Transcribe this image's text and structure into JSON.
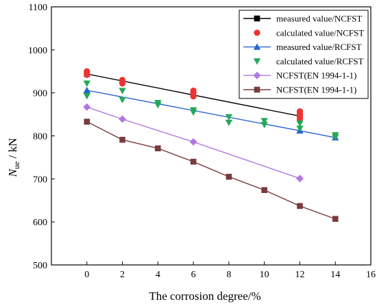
{
  "chart_data": {
    "type": "scatter",
    "title": "",
    "xlabel": "The corrosion degree/%",
    "ylabel_main": "N",
    "ylabel_sub": "ue",
    "ylabel_rest": " / kN",
    "xlim": [
      -2,
      16
    ],
    "ylim": [
      500,
      1100
    ],
    "xticks": [
      0,
      2,
      4,
      6,
      8,
      10,
      12,
      14,
      16
    ],
    "yticks": [
      500,
      600,
      700,
      800,
      900,
      1000,
      1100
    ],
    "grid": false,
    "legend_position": "top-right",
    "series": [
      {
        "name": "measured value/NCFST",
        "color": "#000000",
        "marker": "square",
        "line": true,
        "x": [
          0,
          12
        ],
        "y": [
          944,
          846
        ]
      },
      {
        "name": "calculated value/NCFST",
        "color": "#ee3333",
        "marker": "circle",
        "line": false,
        "x": [
          0,
          0,
          0,
          2,
          2,
          2,
          6,
          6,
          6,
          12,
          12,
          12,
          12
        ],
        "y": [
          950,
          946,
          942,
          930,
          926,
          922,
          905,
          900,
          892,
          857,
          851,
          845,
          840
        ]
      },
      {
        "name": "measured value/RCFST",
        "color": "#2a62d4",
        "marker": "triangle-up",
        "line": true,
        "x": [
          0,
          12,
          14
        ],
        "y": [
          906,
          812,
          796
        ]
      },
      {
        "name": "calculated value/RCFST",
        "color": "#22aa55",
        "marker": "triangle-down",
        "line": false,
        "x": [
          0,
          0,
          2,
          2,
          4,
          4,
          6,
          6,
          8,
          8,
          10,
          10,
          12,
          12,
          14,
          14
        ],
        "y": [
          922,
          893,
          905,
          884,
          877,
          872,
          860,
          855,
          844,
          831,
          835,
          826,
          829,
          817,
          802,
          797
        ]
      },
      {
        "name": "NCFST(EN 1994-1-1)",
        "color": "#b078e0",
        "marker": "diamond",
        "line": true,
        "x": [
          0,
          2,
          6,
          12
        ],
        "y": [
          867,
          839,
          786,
          701
        ]
      },
      {
        "name": "NCFST(EN 1994-1-1)",
        "color": "#7a3b3b",
        "marker": "square",
        "line": true,
        "x": [
          0,
          2,
          4,
          6,
          8,
          10,
          12,
          14
        ],
        "y": [
          833,
          791,
          771,
          740,
          705,
          674,
          637,
          607
        ]
      }
    ]
  }
}
